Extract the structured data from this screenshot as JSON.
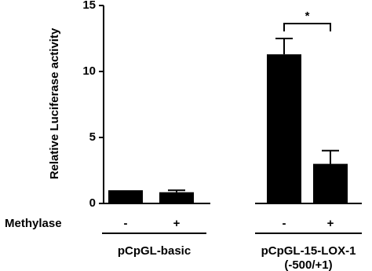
{
  "chart_data": {
    "type": "bar",
    "y_label": "Relative Luciferase activity",
    "row_label": "Methylase",
    "categories": [
      "-",
      "+",
      "-",
      "+"
    ],
    "values": [
      1.0,
      0.85,
      11.3,
      3.0
    ],
    "errors": [
      0,
      0.15,
      1.2,
      1.0
    ],
    "color": "#000000",
    "groups": [
      [
        "pCpGL-basic"
      ],
      [
        "pCpGL-15-LOX-1",
        "(-500/+1)"
      ]
    ],
    "annotation": "*",
    "ylim": [
      0,
      15
    ],
    "yticks": [
      0,
      5,
      10,
      15
    ]
  }
}
